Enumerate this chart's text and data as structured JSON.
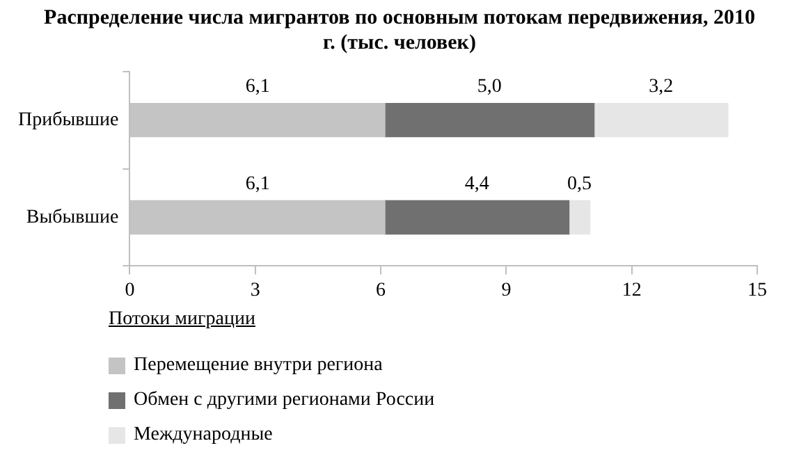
{
  "chart_data": {
    "type": "bar",
    "orientation": "horizontal",
    "stacked": true,
    "title": "Распределение числа мигрантов по основным потокам передвижения, 2010 г. (тыс. человек)",
    "categories": [
      "Прибывшие",
      "Выбывшие"
    ],
    "series": [
      {
        "name": "Перемещение внутри региона",
        "color": "#c4c4c4",
        "values": [
          6.1,
          6.1
        ],
        "value_labels": [
          "6,1",
          "6,1"
        ]
      },
      {
        "name": "Обмен с другими регионами России",
        "color": "#707070",
        "values": [
          5.0,
          4.4
        ],
        "value_labels": [
          "5,0",
          "4,4"
        ]
      },
      {
        "name": "Международные",
        "color": "#e6e6e6",
        "values": [
          3.2,
          0.5
        ],
        "value_labels": [
          "3,2",
          "0,5"
        ]
      }
    ],
    "xlim": [
      0,
      15
    ],
    "xticks": [
      0,
      3,
      6,
      9,
      12,
      15
    ],
    "grid": false,
    "legend": "bottom left",
    "legend_title": "Потоки миграции"
  }
}
